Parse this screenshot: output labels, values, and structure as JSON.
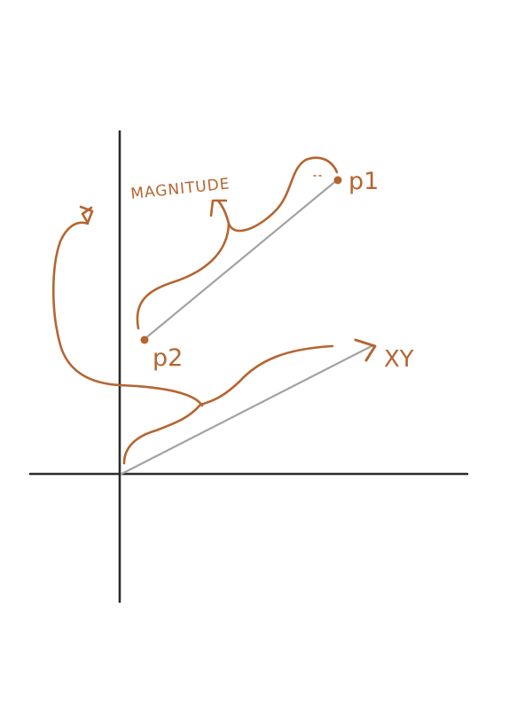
{
  "colors": {
    "ink": "#b5652f",
    "axis": "#2b2b2b",
    "vector": "#a3a3a3",
    "background": "#ffffff"
  },
  "labels": {
    "magnitude": "MAGNITUDE",
    "p1": "p1",
    "p2": "p2",
    "xy": "XY"
  },
  "icons": {
    "arrowhead": "arrowhead-icon",
    "point": "point-marker-icon"
  }
}
